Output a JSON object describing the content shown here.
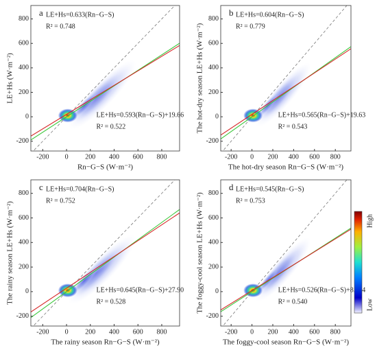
{
  "chart_data": [
    {
      "type": "density_scatter",
      "panel_label": "a",
      "xlabel": "Rn−G−S (W·m⁻²)",
      "ylabel": "LE+Hs (W·m⁻²)",
      "xlim": [
        -300,
        950
      ],
      "ylim": [
        -280,
        910
      ],
      "xticks": [
        -200,
        0,
        200,
        400,
        600,
        800
      ],
      "yticks": [
        -200,
        0,
        200,
        400,
        600,
        800
      ],
      "fit_lines": [
        {
          "name": "LE+Hs=0.633(Rn−G−S)",
          "r2": "R² = 0.748",
          "slope": 0.633,
          "intercept": 0,
          "color": "#3cc83c"
        },
        {
          "name": "LE+Hs=0.593(Rn−G−S)+19.66",
          "r2": "R² = 0.522",
          "slope": 0.593,
          "intercept": 19.66,
          "color": "#d62728"
        }
      ]
    },
    {
      "type": "density_scatter",
      "panel_label": "b",
      "xlabel": "The hot-dry season Rn−G−S (W·m⁻²)",
      "ylabel": "The hot-dry season LE+Hs (W·m⁻²)",
      "xlim": [
        -300,
        950
      ],
      "ylim": [
        -280,
        910
      ],
      "xticks": [
        -200,
        0,
        200,
        400,
        600,
        800
      ],
      "yticks": [
        -200,
        0,
        200,
        400,
        600,
        800
      ],
      "fit_lines": [
        {
          "name": "LE+Hs=0.604(Rn−G−S)",
          "r2": "R² = 0.779",
          "slope": 0.604,
          "intercept": 0,
          "color": "#3cc83c"
        },
        {
          "name": "LE+Hs=0.565(Rn−G−S)+19.63",
          "r2": "R² = 0.543",
          "slope": 0.565,
          "intercept": 19.63,
          "color": "#d62728"
        }
      ]
    },
    {
      "type": "density_scatter",
      "panel_label": "c",
      "xlabel": "The rainy season Rn−G−S (W·m⁻²)",
      "ylabel": "The rainy season LE+Hs (W·m⁻²)",
      "xlim": [
        -300,
        950
      ],
      "ylim": [
        -280,
        910
      ],
      "xticks": [
        -200,
        0,
        200,
        400,
        600,
        800
      ],
      "yticks": [
        -200,
        0,
        200,
        400,
        600,
        800
      ],
      "fit_lines": [
        {
          "name": "LE+Hs=0.704(Rn−G−S)",
          "r2": "R² = 0.752",
          "slope": 0.704,
          "intercept": 0,
          "color": "#3cc83c"
        },
        {
          "name": "LE+Hs=0.645(Rn−G−S)+27.90",
          "r2": "R² = 0.528",
          "slope": 0.645,
          "intercept": 27.9,
          "color": "#d62728"
        }
      ]
    },
    {
      "type": "density_scatter",
      "panel_label": "d",
      "xlabel": "The foggy-cool season Rn−G−S (W·m⁻²)",
      "ylabel": "The foggy-cool season LE+Hs (W·m⁻²)",
      "xlim": [
        -300,
        950
      ],
      "ylim": [
        -280,
        910
      ],
      "xticks": [
        -200,
        0,
        200,
        400,
        600,
        800
      ],
      "yticks": [
        -200,
        0,
        200,
        400,
        600,
        800
      ],
      "fit_lines": [
        {
          "name": "LE+Hs=0.545(Rn−G−S)",
          "r2": "R² = 0.753",
          "slope": 0.545,
          "intercept": 0,
          "color": "#3cc83c"
        },
        {
          "name": "LE+Hs=0.526(Rn−G−S)+8.654",
          "r2": "R² = 0.540",
          "slope": 0.526,
          "intercept": 8.654,
          "color": "#d62728"
        }
      ]
    }
  ],
  "colorbar": {
    "high": "High",
    "low": "Low"
  }
}
